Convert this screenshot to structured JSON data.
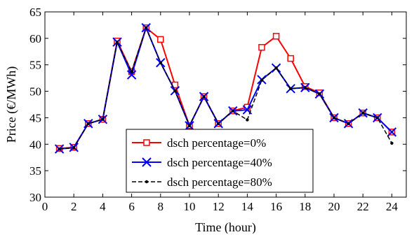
{
  "chart_data": {
    "type": "line",
    "xlabel": "Time (hour)",
    "ylabel": "Price (€/MWh)",
    "xlim": [
      0,
      25
    ],
    "ylim": [
      30,
      65
    ],
    "xticks": [
      0,
      2,
      4,
      6,
      8,
      10,
      12,
      14,
      16,
      18,
      20,
      22,
      24
    ],
    "yticks": [
      30,
      35,
      40,
      45,
      50,
      55,
      60,
      65
    ],
    "x": [
      1,
      2,
      3,
      4,
      5,
      6,
      7,
      8,
      9,
      10,
      11,
      12,
      13,
      14,
      15,
      16,
      17,
      18,
      19,
      20,
      21,
      22,
      23,
      24
    ],
    "grid": false,
    "legend_position": "bottom-center",
    "series": [
      {
        "name": "dsch percentage=0%",
        "color": "#ff0000",
        "marker": "square",
        "line": "solid",
        "values": [
          39.2,
          39.4,
          43.9,
          44.7,
          59.5,
          53.7,
          62.0,
          59.8,
          51.2,
          43.5,
          49.0,
          43.9,
          46.3,
          47.0,
          58.3,
          60.4,
          56.2,
          50.9,
          49.7,
          45.0,
          43.9,
          45.9,
          45.0,
          42.3
        ]
      },
      {
        "name": "dsch percentage=40%",
        "color": "#0000ff",
        "marker": "x",
        "line": "solid",
        "values": [
          39.1,
          39.4,
          43.9,
          44.7,
          59.3,
          53.1,
          62.0,
          55.4,
          50.1,
          43.5,
          49.0,
          43.9,
          46.3,
          46.5,
          52.2,
          54.4,
          50.5,
          50.7,
          49.5,
          45.0,
          43.9,
          45.9,
          45.0,
          42.3
        ]
      },
      {
        "name": "dsch percentage=80%",
        "color": "#000000",
        "marker": "dot",
        "line": "dashed",
        "values": [
          39.1,
          39.3,
          43.9,
          44.7,
          59.3,
          53.7,
          62.0,
          55.4,
          50.1,
          43.5,
          49.0,
          43.9,
          46.3,
          44.6,
          52.1,
          54.4,
          50.5,
          50.7,
          49.5,
          45.0,
          43.9,
          45.9,
          45.0,
          40.2
        ]
      }
    ]
  }
}
